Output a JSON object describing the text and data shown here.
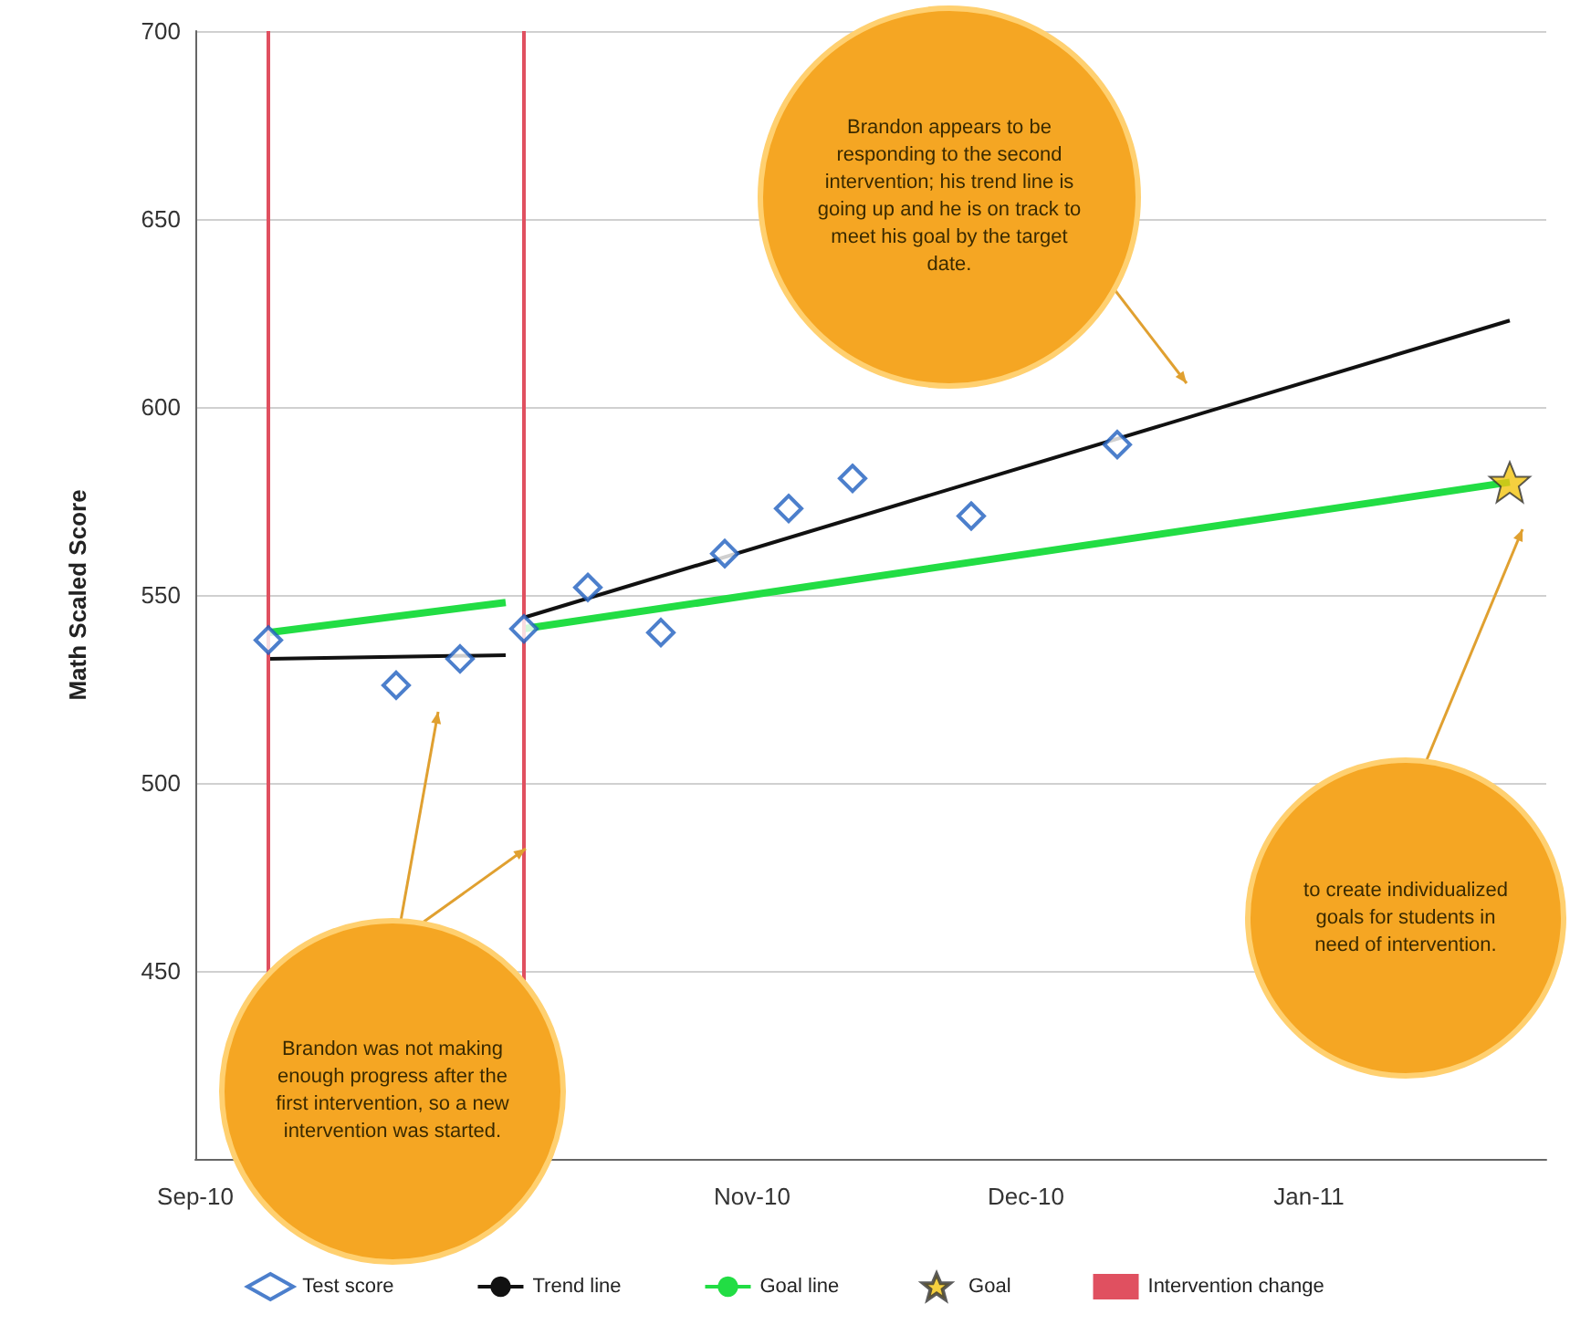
{
  "chart_data": {
    "type": "scatter",
    "ylabel": "Math Scaled Score",
    "xlim": [
      "2010-09-01",
      "2011-01-27"
    ],
    "ylim": [
      400,
      700
    ],
    "xticks": [
      {
        "value": "2010-09",
        "label": "Sep-10"
      },
      {
        "value": "2010-11",
        "label": "Nov-10"
      },
      {
        "value": "2010-12",
        "label": "Dec-10"
      },
      {
        "value": "2011-01",
        "label": "Jan-11"
      }
    ],
    "yticks": [
      450,
      500,
      550,
      600,
      650,
      700
    ],
    "grid": "y",
    "legend": "bottom",
    "series": [
      {
        "name": "Test score",
        "marker": "diamond",
        "color": "#1f5fbf",
        "x": [
          "2010-09-09",
          "2010-09-23",
          "2010-09-30",
          "2010-10-07",
          "2010-10-14",
          "2010-10-22",
          "2010-10-29",
          "2010-11-05",
          "2010-11-12",
          "2010-11-25",
          "2010-12-11"
        ],
        "values": [
          538,
          526,
          533,
          541,
          552,
          540,
          561,
          573,
          581,
          571,
          590
        ]
      },
      {
        "name": "Trend line",
        "type": "line",
        "marker": "none",
        "color": "#111111",
        "x": [
          "2010-09-09",
          "2010-10-05",
          "2010-10-06",
          "2010-10-07",
          "2011-01-23"
        ],
        "values": [
          533,
          534,
          null,
          544,
          623
        ]
      },
      {
        "name": "Goal line",
        "type": "line",
        "marker": "none",
        "color": "#22dd44",
        "x": [
          "2010-09-09",
          "2010-10-05",
          "2010-10-06",
          "2010-10-07",
          "2011-01-23"
        ],
        "values": [
          540,
          548,
          null,
          541,
          580
        ]
      },
      {
        "name": "Goal",
        "type": "scatter",
        "marker": "star",
        "color": "#f2c40f",
        "x": [
          "2011-01-23"
        ],
        "values": [
          580
        ]
      }
    ],
    "ref_lines": [
      {
        "axis": "x",
        "value": "2010-09-09",
        "label": "Intervention change",
        "color": "#e05060"
      },
      {
        "axis": "x",
        "value": "2010-10-07",
        "color": "#e05060"
      }
    ],
    "annotations": [
      "Brandon appears to be responding to the second intervention; his trend line is going up and he is on track to meet his goal by the target date.",
      "Brandon was not making enough progress after the first intervention, so a new intervention was started.",
      "to create individualized goals for students in need of intervention."
    ]
  }
}
